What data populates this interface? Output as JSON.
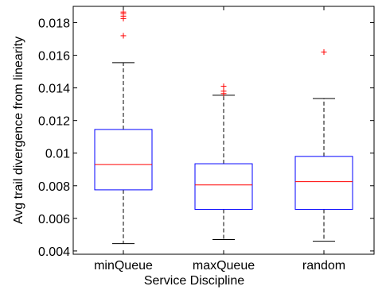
{
  "chart_data": {
    "type": "boxplot",
    "xlabel": "Service Discipline",
    "ylabel": "Avg trail divergence from linearity",
    "ylim": [
      0.0038,
      0.019
    ],
    "yticks": [
      0.004,
      0.006,
      0.008,
      0.01,
      0.012,
      0.014,
      0.016,
      0.018
    ],
    "ytick_labels": [
      "0.004",
      "0.006",
      "0.008",
      "0.01",
      "0.012",
      "0.014",
      "0.016",
      "0.018"
    ],
    "grid": false,
    "categories": [
      "minQueue",
      "maxQueue",
      "random"
    ],
    "boxes": [
      {
        "category": "minQueue",
        "whisker_low": 0.00445,
        "q1": 0.00775,
        "median": 0.0093,
        "q3": 0.01145,
        "whisker_high": 0.01555,
        "outliers": [
          0.0172,
          0.01825,
          0.0184,
          0.01855,
          0.01865
        ]
      },
      {
        "category": "maxQueue",
        "whisker_low": 0.0047,
        "q1": 0.00655,
        "median": 0.00805,
        "q3": 0.00935,
        "whisker_high": 0.01355,
        "outliers": [
          0.01365,
          0.0138,
          0.0141
        ]
      },
      {
        "category": "random",
        "whisker_low": 0.0046,
        "q1": 0.00655,
        "median": 0.00825,
        "q3": 0.0098,
        "whisker_high": 0.01335,
        "outliers": [
          0.0162
        ]
      }
    ],
    "colors": {
      "box": "#0000ff",
      "median": "#ff0000",
      "whisker": "#000000",
      "outlier": "#ff0000",
      "axes": "#000000"
    }
  }
}
